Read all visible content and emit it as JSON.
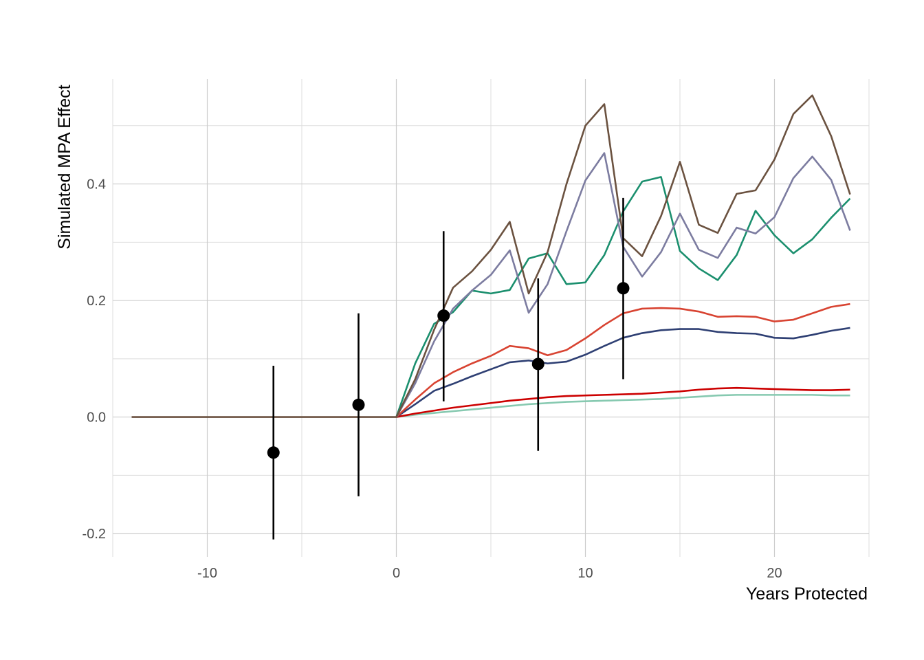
{
  "chart_data": {
    "type": "line",
    "title": "",
    "xlabel": "Years Protected",
    "ylabel": "Simulated MPA Effect",
    "xlim": [
      -15,
      25
    ],
    "ylim": [
      -0.24,
      0.58
    ],
    "x_ticks": [
      -10,
      0,
      10,
      20
    ],
    "x_tick_labels": [
      "-10",
      "0",
      "10",
      "20"
    ],
    "y_ticks": [
      -0.2,
      0.0,
      0.2,
      0.4
    ],
    "y_tick_labels": [
      "-0.2",
      "0.0",
      "0.2",
      "0.4"
    ],
    "grid": true,
    "legend": "none",
    "series": [
      {
        "color": "#6b5240",
        "x": [
          -14,
          -13,
          -12,
          -11,
          -10,
          -9,
          -8,
          -7,
          -6,
          -5,
          -4,
          -3,
          -2,
          -1,
          0,
          1,
          2,
          3,
          4,
          5,
          6,
          7,
          8,
          9,
          10,
          11,
          12,
          13,
          14,
          15,
          16,
          17,
          18,
          19,
          20,
          21,
          22,
          23,
          24
        ],
        "y": [
          0,
          0,
          0,
          0,
          0,
          0,
          0,
          0,
          0,
          0,
          0,
          0,
          0,
          0,
          0,
          0.065,
          0.15,
          0.222,
          0.25,
          0.287,
          0.335,
          0.212,
          0.283,
          0.4,
          0.5,
          0.537,
          0.307,
          0.276,
          0.345,
          0.438,
          0.33,
          0.316,
          0.383,
          0.389,
          0.442,
          0.52,
          0.552,
          0.482,
          0.382
        ]
      },
      {
        "color": "#7c7ca0",
        "x": [
          0,
          1,
          2,
          3,
          4,
          5,
          6,
          7,
          8,
          9,
          10,
          11,
          12,
          13,
          14,
          15,
          16,
          17,
          18,
          19,
          20,
          21,
          22,
          23,
          24
        ],
        "y": [
          0,
          0.058,
          0.13,
          0.186,
          0.217,
          0.244,
          0.286,
          0.179,
          0.228,
          0.319,
          0.406,
          0.453,
          0.292,
          0.241,
          0.283,
          0.349,
          0.287,
          0.273,
          0.325,
          0.315,
          0.343,
          0.41,
          0.447,
          0.407,
          0.32
        ]
      },
      {
        "color": "#1b8f6e",
        "x": [
          0,
          1,
          2,
          3,
          4,
          5,
          6,
          7,
          8,
          9,
          10,
          11,
          12,
          13,
          14,
          15,
          16,
          17,
          18,
          19,
          20,
          21,
          22,
          23,
          24
        ],
        "y": [
          0,
          0.092,
          0.16,
          0.18,
          0.217,
          0.212,
          0.218,
          0.272,
          0.281,
          0.228,
          0.231,
          0.278,
          0.353,
          0.404,
          0.412,
          0.285,
          0.255,
          0.235,
          0.278,
          0.354,
          0.312,
          0.281,
          0.305,
          0.342,
          0.375
        ]
      },
      {
        "color": "#d84331",
        "x": [
          0,
          1,
          2,
          3,
          4,
          5,
          6,
          7,
          8,
          9,
          10,
          11,
          12,
          13,
          14,
          15,
          16,
          17,
          18,
          19,
          20,
          21,
          22,
          23,
          24
        ],
        "y": [
          0,
          0.03,
          0.058,
          0.077,
          0.092,
          0.105,
          0.122,
          0.118,
          0.106,
          0.115,
          0.135,
          0.158,
          0.178,
          0.186,
          0.187,
          0.186,
          0.181,
          0.172,
          0.173,
          0.172,
          0.164,
          0.167,
          0.178,
          0.189,
          0.194
        ]
      },
      {
        "color": "#2e3f73",
        "x": [
          0,
          1,
          2,
          3,
          4,
          5,
          6,
          7,
          8,
          9,
          10,
          11,
          12,
          13,
          14,
          15,
          16,
          17,
          18,
          19,
          20,
          21,
          22,
          23,
          24
        ],
        "y": [
          0,
          0.022,
          0.045,
          0.057,
          0.07,
          0.082,
          0.094,
          0.097,
          0.092,
          0.095,
          0.107,
          0.122,
          0.136,
          0.144,
          0.149,
          0.151,
          0.151,
          0.146,
          0.144,
          0.143,
          0.136,
          0.135,
          0.141,
          0.148,
          0.153
        ]
      },
      {
        "color": "#cc0000",
        "x": [
          0,
          1,
          2,
          3,
          4,
          5,
          6,
          7,
          8,
          9,
          10,
          11,
          12,
          13,
          14,
          15,
          16,
          17,
          18,
          19,
          20,
          21,
          22,
          23,
          24
        ],
        "y": [
          0,
          0.006,
          0.011,
          0.016,
          0.02,
          0.024,
          0.028,
          0.031,
          0.034,
          0.036,
          0.037,
          0.038,
          0.039,
          0.04,
          0.042,
          0.044,
          0.047,
          0.049,
          0.05,
          0.049,
          0.048,
          0.047,
          0.046,
          0.046,
          0.047
        ]
      },
      {
        "color": "#86c9b0",
        "x": [
          0,
          1,
          2,
          3,
          4,
          5,
          6,
          7,
          8,
          9,
          10,
          11,
          12,
          13,
          14,
          15,
          16,
          17,
          18,
          19,
          20,
          21,
          22,
          23,
          24
        ],
        "y": [
          0,
          0.004,
          0.007,
          0.01,
          0.013,
          0.016,
          0.019,
          0.022,
          0.024,
          0.026,
          0.027,
          0.028,
          0.029,
          0.03,
          0.031,
          0.033,
          0.035,
          0.037,
          0.038,
          0.038,
          0.038,
          0.038,
          0.038,
          0.037,
          0.037
        ]
      }
    ],
    "points": [
      {
        "x": -6.5,
        "y": -0.061,
        "ymin": -0.21,
        "ymax": 0.088
      },
      {
        "x": -2,
        "y": 0.021,
        "ymin": -0.136,
        "ymax": 0.178
      },
      {
        "x": 2.5,
        "y": 0.174,
        "ymin": 0.027,
        "ymax": 0.319
      },
      {
        "x": 7.5,
        "y": 0.091,
        "ymin": -0.058,
        "ymax": 0.238
      },
      {
        "x": 12,
        "y": 0.221,
        "ymin": 0.065,
        "ymax": 0.376
      }
    ],
    "points_color": "#000000"
  }
}
